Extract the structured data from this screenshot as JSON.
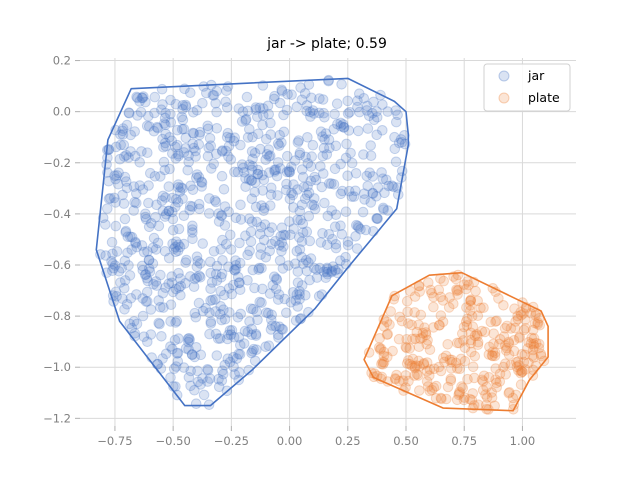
{
  "chart_data": {
    "type": "scatter",
    "title": "jar -> plate; 0.59",
    "xlabel": "",
    "ylabel": "",
    "xlim": [
      -0.9,
      1.23
    ],
    "ylim": [
      -1.23,
      0.21
    ],
    "xticks": [
      -0.75,
      -0.5,
      -0.25,
      0.0,
      0.25,
      0.5,
      0.75,
      1.0
    ],
    "xtick_labels": [
      "−0.75",
      "−0.50",
      "−0.25",
      "0.00",
      "0.25",
      "0.50",
      "0.75",
      "1.00"
    ],
    "yticks": [
      0.2,
      0.0,
      -0.2,
      -0.4,
      -0.6,
      -0.8,
      -1.0,
      -1.2
    ],
    "ytick_labels": [
      "0.2",
      "0.0",
      "−0.2",
      "−0.4",
      "−0.6",
      "−0.8",
      "−1.0",
      "−1.2"
    ],
    "grid": true,
    "legend": {
      "position": "top-right",
      "entries": [
        "jar",
        "plate"
      ]
    },
    "series": [
      {
        "name": "jar",
        "color": "#4472c4",
        "hull": [
          [
            -0.83,
            -0.54
          ],
          [
            -0.73,
            -0.82
          ],
          [
            -0.45,
            -1.15
          ],
          [
            -0.34,
            -1.15
          ],
          [
            -0.16,
            -1.01
          ],
          [
            0.11,
            -0.77
          ],
          [
            0.25,
            -0.61
          ],
          [
            0.46,
            -0.38
          ],
          [
            0.51,
            -0.13
          ],
          [
            0.51,
            -0.09
          ],
          [
            0.5,
            0.0
          ],
          [
            0.45,
            0.04
          ],
          [
            0.25,
            0.13
          ],
          [
            -0.68,
            0.09
          ],
          [
            -0.78,
            -0.11
          ]
        ],
        "n_points": 900,
        "x_range": [
          -0.83,
          0.51
        ],
        "y_range": [
          -1.15,
          0.13
        ]
      },
      {
        "name": "plate",
        "color": "#ed7d31",
        "hull": [
          [
            0.32,
            -0.97
          ],
          [
            0.36,
            -1.04
          ],
          [
            0.66,
            -1.16
          ],
          [
            0.96,
            -1.17
          ],
          [
            1.03,
            -1.05
          ],
          [
            1.11,
            -0.96
          ],
          [
            1.11,
            -0.84
          ],
          [
            1.08,
            -0.78
          ],
          [
            0.99,
            -0.74
          ],
          [
            0.74,
            -0.63
          ],
          [
            0.6,
            -0.64
          ],
          [
            0.44,
            -0.72
          ]
        ],
        "n_points": 320,
        "x_range": [
          0.32,
          1.11
        ],
        "y_range": [
          -1.17,
          -0.63
        ]
      }
    ]
  }
}
